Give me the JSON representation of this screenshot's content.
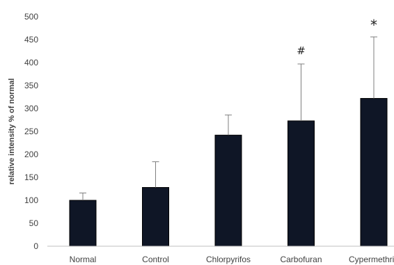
{
  "chart_data": {
    "type": "bar",
    "title": "",
    "xlabel": "",
    "ylabel": "relative intensity % of normal",
    "ylim": [
      0,
      500
    ],
    "yticks": [
      0,
      50,
      100,
      150,
      200,
      250,
      300,
      350,
      400,
      450,
      500
    ],
    "ytick_labels": [
      "0",
      "50",
      "100",
      "150",
      "200",
      "250",
      "300",
      "350",
      "400",
      "450",
      "500"
    ],
    "categories": [
      "Normal",
      "Control",
      "Chlorpyrifos",
      "Carbofuran",
      "Cypermethrin"
    ],
    "values": [
      100,
      128,
      242,
      273,
      322
    ],
    "error_upper": [
      116,
      184,
      286,
      397,
      456
    ],
    "annotations": [
      "",
      "",
      "",
      "#",
      "*"
    ],
    "grid": false,
    "legend": "none",
    "colors": {
      "bar": "#0f1626",
      "error_bar": "#7f7f7f",
      "axis": "#bfbfbf",
      "text": "#404040"
    }
  }
}
